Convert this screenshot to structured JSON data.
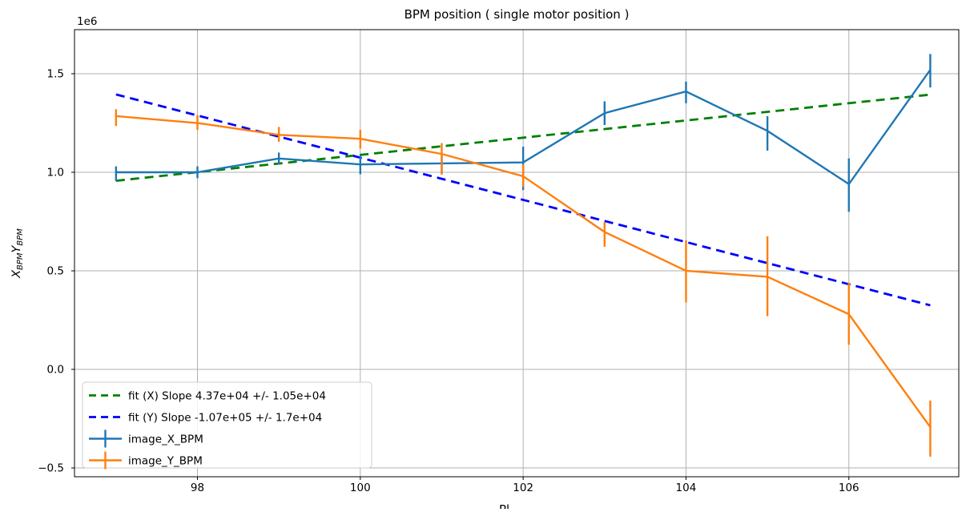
{
  "figure": {
    "title": "BPM position ( single motor  position )",
    "offset_text": "1e6",
    "xlabel_partial": "Pl",
    "ylabel_parts": [
      {
        "base": "X",
        "sub": "BPM"
      },
      {
        "base": "Y",
        "sub": "BPM"
      }
    ]
  },
  "chart_data": {
    "type": "line",
    "x": [
      97,
      98,
      99,
      100,
      101,
      102,
      103,
      104,
      105,
      106,
      107
    ],
    "series": [
      {
        "name": "image_X_BPM",
        "color": "#1f77b4",
        "values": [
          1000000,
          1000000,
          1070000,
          1040000,
          1045000,
          1050000,
          1300000,
          1410000,
          1210000,
          940000,
          1520000
        ],
        "err_lo": [
          45000,
          30000,
          30000,
          50000,
          50000,
          140000,
          60000,
          60000,
          100000,
          140000,
          90000
        ],
        "err_hi": [
          30000,
          30000,
          30000,
          45000,
          40000,
          80000,
          60000,
          50000,
          75000,
          130000,
          80000
        ]
      },
      {
        "name": "image_Y_BPM",
        "color": "#ff7f0e",
        "values": [
          1285000,
          1250000,
          1190000,
          1170000,
          1093000,
          980000,
          697000,
          500000,
          470000,
          280000,
          -293000
        ],
        "err_lo": [
          50000,
          35000,
          35000,
          50000,
          105000,
          55000,
          75000,
          160000,
          200000,
          155000,
          150000
        ],
        "err_hi": [
          35000,
          40000,
          40000,
          45000,
          55000,
          60000,
          50000,
          155000,
          205000,
          160000,
          135000
        ]
      }
    ],
    "fits": [
      {
        "label": "fit (X) Slope 4.37e+04 +/- 1.05e+04",
        "color": "#008000",
        "x": [
          97,
          107
        ],
        "y": [
          957000,
          1394000
        ]
      },
      {
        "label": "fit (Y) Slope -1.07e+05 +/- 1.7e+04",
        "color": "#0000ff",
        "x": [
          97,
          107
        ],
        "y": [
          1395000,
          325000
        ]
      }
    ],
    "xticks": {
      "values": [
        98,
        100,
        102,
        104,
        106
      ],
      "labels": [
        "98",
        "100",
        "102",
        "104",
        "106"
      ]
    },
    "yticks": {
      "values": [
        -500000,
        0,
        500000,
        1000000,
        1500000
      ],
      "labels": [
        "−0.5",
        "0.0",
        "0.5",
        "1.0",
        "1.5"
      ]
    },
    "xlim": [
      96.49,
      107.35
    ],
    "ylim": [
      -544700,
      1723600
    ],
    "grid": true,
    "legend_position": "lower left",
    "colors": {
      "grid": "#b0b0b0",
      "spine": "#000000",
      "background": "#ffffff",
      "legend_border": "#cccccc"
    }
  }
}
